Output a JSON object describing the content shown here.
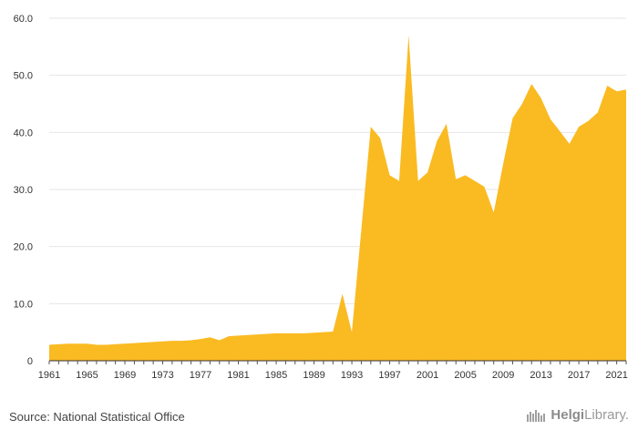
{
  "chart_data": {
    "type": "area",
    "title": "",
    "xlabel": "",
    "ylabel": "",
    "color": "#FABB22",
    "x": [
      1961,
      1962,
      1963,
      1964,
      1965,
      1966,
      1967,
      1968,
      1969,
      1970,
      1971,
      1972,
      1973,
      1974,
      1975,
      1976,
      1977,
      1978,
      1979,
      1980,
      1981,
      1982,
      1983,
      1984,
      1985,
      1986,
      1987,
      1988,
      1989,
      1990,
      1991,
      1992,
      1993,
      1994,
      1995,
      1996,
      1997,
      1998,
      1999,
      2000,
      2001,
      2002,
      2003,
      2004,
      2005,
      2006,
      2007,
      2008,
      2009,
      2010,
      2011,
      2012,
      2013,
      2014,
      2015,
      2016,
      2017,
      2018,
      2019,
      2020,
      2021,
      2022
    ],
    "values": [
      2.8,
      2.9,
      3.0,
      3.0,
      3.0,
      2.8,
      2.8,
      2.9,
      3.0,
      3.1,
      3.2,
      3.3,
      3.4,
      3.5,
      3.5,
      3.6,
      3.8,
      4.1,
      3.6,
      4.3,
      4.4,
      4.5,
      4.6,
      4.7,
      4.8,
      4.8,
      4.8,
      4.8,
      4.9,
      5.0,
      5.1,
      11.7,
      5.0,
      23.0,
      41.0,
      39.0,
      32.5,
      31.5,
      57.0,
      31.5,
      33.0,
      38.5,
      41.5,
      31.8,
      32.5,
      31.5,
      30.5,
      26.0,
      34.5,
      42.5,
      45.0,
      48.5,
      46.0,
      42.3,
      40.2,
      38.0,
      41.0,
      42.0,
      43.5,
      48.2,
      47.2,
      47.5
    ],
    "xlim": [
      1961,
      2022
    ],
    "ylim": [
      0,
      60
    ],
    "yticks": [
      0,
      10,
      20,
      30,
      40,
      50,
      60
    ],
    "ytick_labels": [
      "0",
      "10.0",
      "20.0",
      "30.0",
      "40.0",
      "50.0",
      "60.0"
    ],
    "xticks": [
      1961,
      1965,
      1969,
      1973,
      1977,
      1981,
      1985,
      1989,
      1993,
      1997,
      2001,
      2005,
      2009,
      2013,
      2017,
      2021
    ],
    "xtick_labels": [
      "1961",
      "1965",
      "1969",
      "1973",
      "1977",
      "1981",
      "1985",
      "1989",
      "1993",
      "1997",
      "2001",
      "2005",
      "2009",
      "2013",
      "2017",
      "2021"
    ],
    "grid": true
  },
  "footer": {
    "source": "Source: National Statistical Office",
    "logo_primary": "Helgi",
    "logo_secondary": "Library."
  }
}
